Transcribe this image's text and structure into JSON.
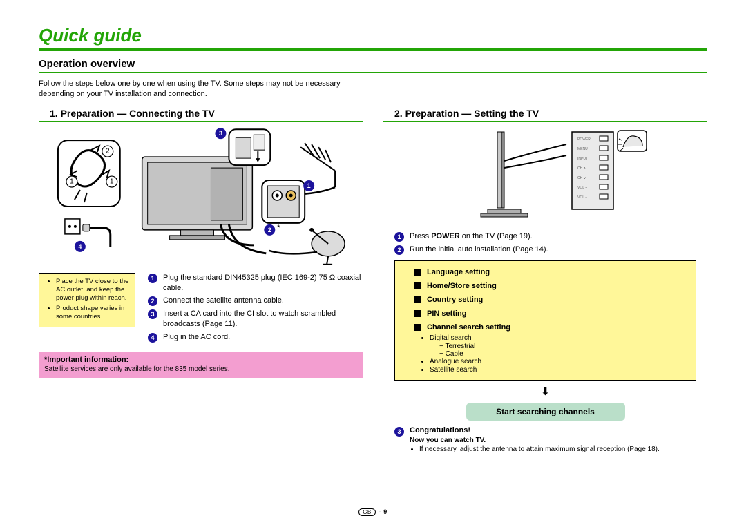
{
  "colors": {
    "accent_green": "#23a507",
    "underline_green": "#23a507",
    "badge_blue": "#1c139c",
    "note_bg": "#fff799",
    "pink_bg": "#f39ed0",
    "pill_bg": "#badfc9"
  },
  "page": {
    "title": "Quick guide",
    "overview_heading": "Operation overview",
    "intro": "Follow the steps below one by one when using the TV. Some steps may not be necessary depending on your TV installation and connection.",
    "footer_gb": "GB",
    "footer_page": " - 9"
  },
  "left": {
    "heading": "1. Preparation — Connecting the TV",
    "notes": [
      "Place the TV close to the AC outlet, and keep the power plug within reach.",
      "Product shape varies in some countries."
    ],
    "steps": [
      "Plug the standard DIN45325 plug (IEC 169-2) 75 Ω coaxial cable.",
      "Connect the satellite antenna cable.",
      "Insert a CA card into the CI slot to watch scrambled broadcasts (Page 11).",
      "Plug in the AC cord."
    ],
    "important_label": "*Important information:",
    "important_text": "Satellite services are only available for the 835 model series."
  },
  "right": {
    "heading": "2. Preparation — Setting the TV",
    "steps_top": [
      {
        "pre": "Press ",
        "bold": "POWER",
        "post": " on the TV (Page 19)."
      },
      {
        "pre": "Run the initial auto installation (Page 14).",
        "bold": "",
        "post": ""
      }
    ],
    "settings_main": [
      "Language setting",
      "Home/Store setting",
      "Country setting",
      "PIN setting",
      "Channel search setting"
    ],
    "settings_sub": [
      {
        "text": "Digital search",
        "children": [
          "Terrestrial",
          "Cable"
        ]
      },
      {
        "text": "Analogue search",
        "children": []
      },
      {
        "text": "Satellite search",
        "children": []
      }
    ],
    "pill": "Start searching channels",
    "congrats_label": "Congratulations!",
    "congrats_sub": "Now you can watch TV.",
    "congrats_bullet": "If necessary, adjust the antenna to attain maximum signal reception (Page 18)."
  }
}
